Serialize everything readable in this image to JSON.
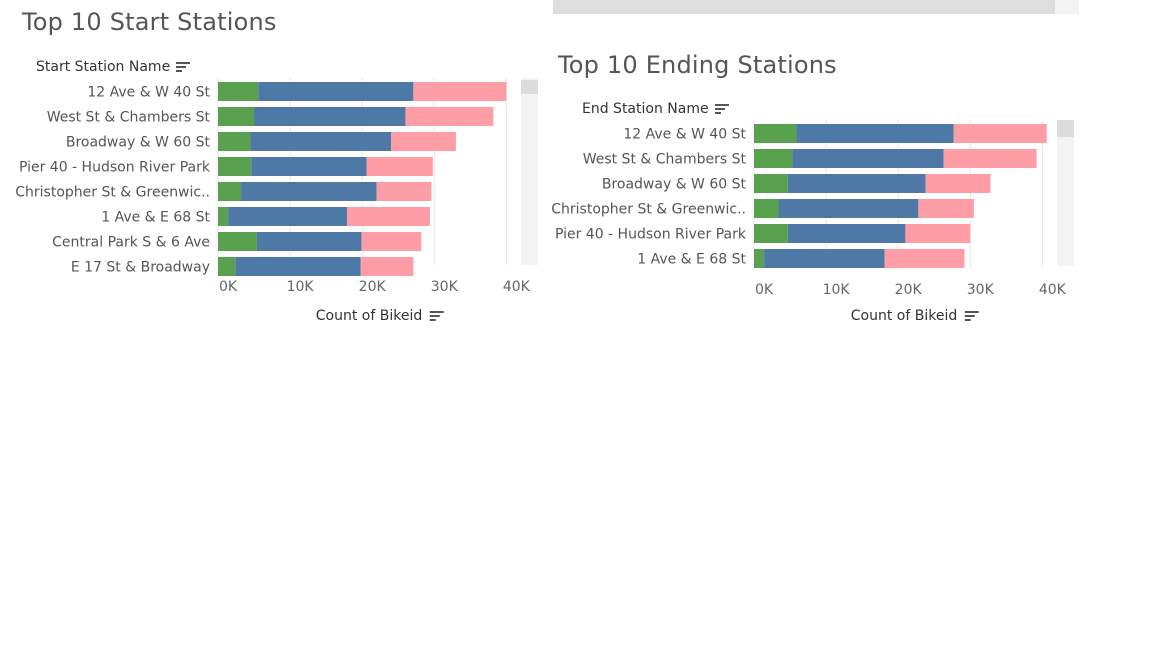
{
  "colors": {
    "green": "#59A14F",
    "blue": "#4E79A7",
    "pink": "#FF9DA7",
    "grid": "#e6e6e6"
  },
  "tick_labels": [
    "0K",
    "10K",
    "20K",
    "30K",
    "40K"
  ],
  "chart_data": [
    {
      "type": "bar",
      "orientation": "horizontal",
      "stacked": true,
      "title": "Top 10 Start Stations",
      "ylabel": "Start Station Name",
      "xlabel": "Count of Bikeid",
      "xlim": [
        0,
        43000
      ],
      "x_ticks": [
        0,
        10000,
        20000,
        30000,
        40000
      ],
      "categories": [
        "12 Ave & W 40 St",
        "West St & Chambers St",
        "Broadway & W 60 St",
        "Pier 40 - Hudson River Park",
        "Christopher St & Greenwic..",
        "1 Ave & E 68 St",
        "Central Park S & 6 Ave",
        "E 17 St & Broadway"
      ],
      "series": [
        {
          "values": [
            5600,
            5000,
            4500,
            4600,
            3200,
            1400,
            5400,
            2400
          ]
        },
        {
          "values": [
            21500,
            21000,
            19500,
            16000,
            18800,
            16500,
            14500,
            17400
          ]
        },
        {
          "values": [
            12900,
            12200,
            9000,
            9200,
            7600,
            11500,
            8300,
            7300
          ]
        }
      ]
    },
    {
      "type": "bar",
      "orientation": "horizontal",
      "stacked": true,
      "title": "Top 10 Ending Stations",
      "ylabel": "End Station Name",
      "xlabel": "Count of Bikeid",
      "xlim": [
        0,
        43000
      ],
      "x_ticks": [
        0,
        10000,
        20000,
        30000,
        40000
      ],
      "categories": [
        "12 Ave & W 40 St",
        "West St & Chambers St",
        "Broadway & W 60 St",
        "Christopher St & Greenwic..",
        "Pier 40 - Hudson River Park",
        "1 Ave & E 68 St"
      ],
      "series": [
        {
          "values": [
            5900,
            5300,
            4700,
            3400,
            4700,
            1400
          ]
        },
        {
          "values": [
            21800,
            21000,
            19100,
            19400,
            16300,
            16700
          ]
        },
        {
          "values": [
            12900,
            12900,
            9000,
            7700,
            9000,
            11100
          ]
        }
      ]
    }
  ]
}
